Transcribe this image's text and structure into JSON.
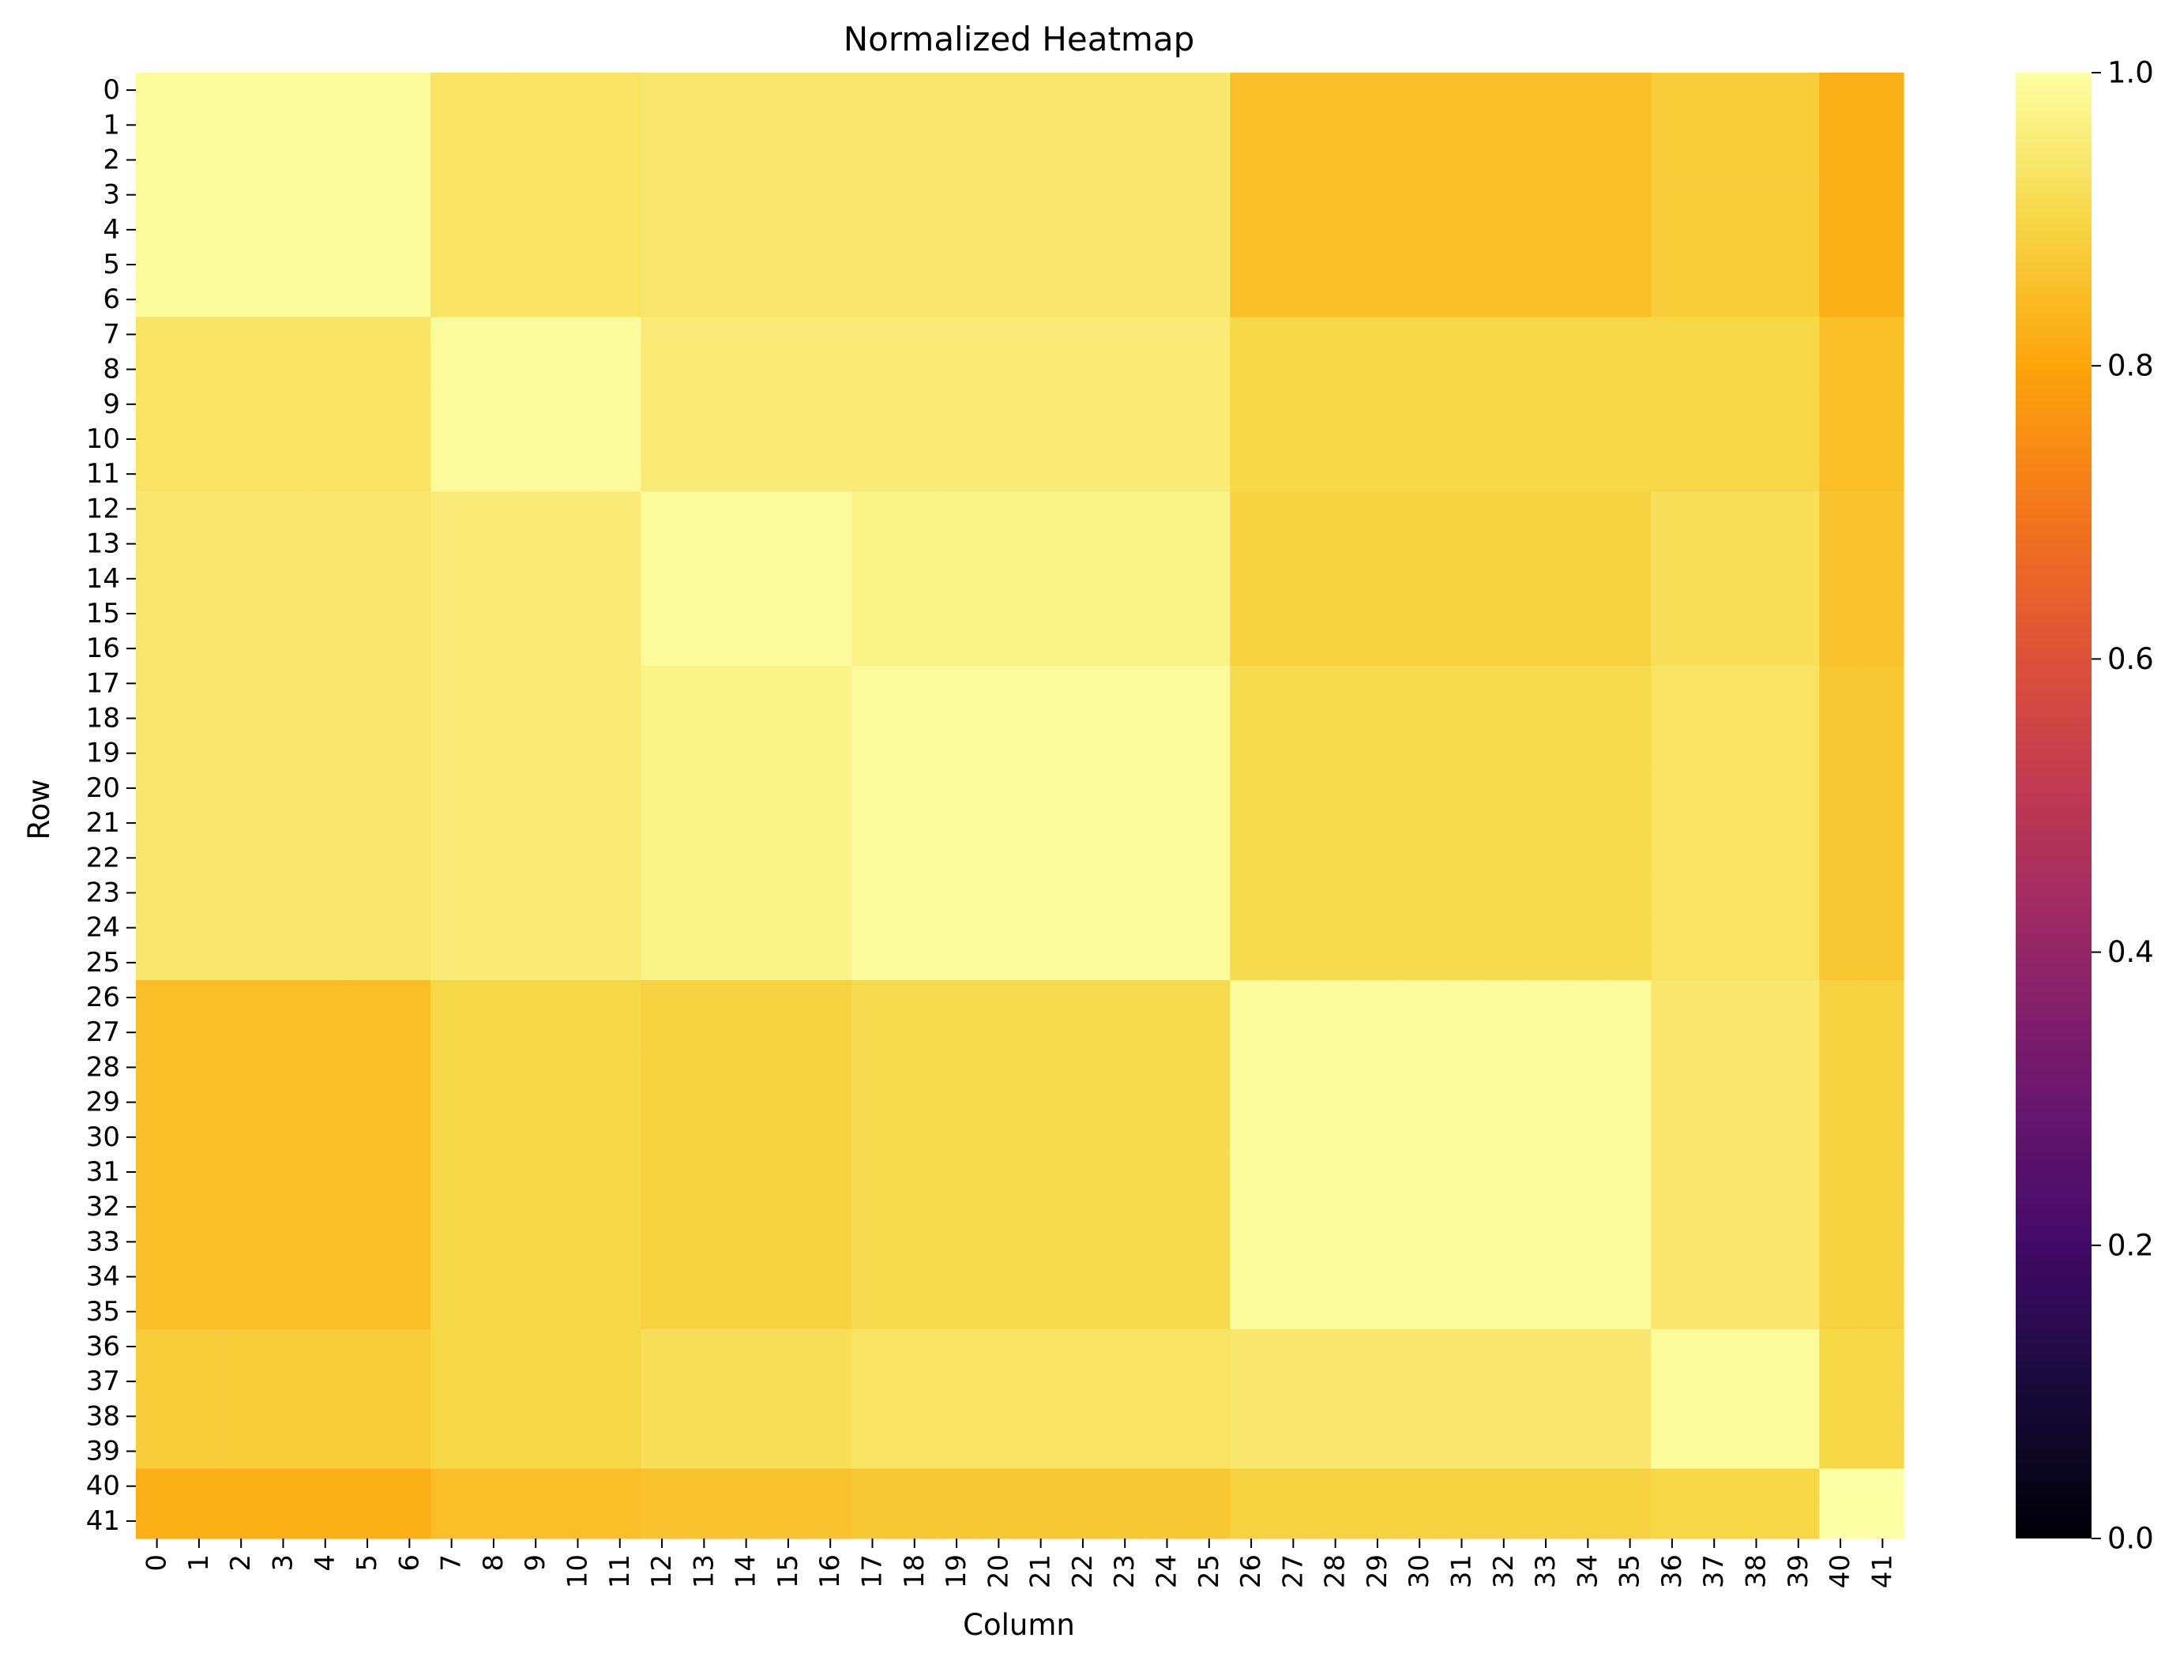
{
  "chart_data": {
    "type": "heatmap",
    "title": "Normalized Heatmap",
    "xlabel": "Column",
    "ylabel": "Row",
    "colormap": "inferno",
    "vmin": 0.0,
    "vmax": 1.0,
    "colorbar_ticks": [
      {
        "value": 0.0,
        "label": "0.0"
      },
      {
        "value": 0.2,
        "label": "0.2"
      },
      {
        "value": 0.4,
        "label": "0.4"
      },
      {
        "value": 0.6,
        "label": "0.6"
      },
      {
        "value": 0.8,
        "label": "0.8"
      },
      {
        "value": 1.0,
        "label": "1.0"
      }
    ],
    "x_labels": [
      "0",
      "1",
      "2",
      "3",
      "4",
      "5",
      "6",
      "7",
      "8",
      "9",
      "10",
      "11",
      "12",
      "13",
      "14",
      "15",
      "16",
      "17",
      "18",
      "19",
      "20",
      "21",
      "22",
      "23",
      "24",
      "25",
      "26",
      "27",
      "28",
      "29",
      "30",
      "31",
      "32",
      "33",
      "34",
      "35",
      "36",
      "37",
      "38",
      "39",
      "40",
      "41"
    ],
    "y_labels": [
      "0",
      "1",
      "2",
      "3",
      "4",
      "5",
      "6",
      "7",
      "8",
      "9",
      "10",
      "11",
      "12",
      "13",
      "14",
      "15",
      "16",
      "17",
      "18",
      "19",
      "20",
      "21",
      "22",
      "23",
      "24",
      "25",
      "26",
      "27",
      "28",
      "29",
      "30",
      "31",
      "32",
      "33",
      "34",
      "35",
      "36",
      "37",
      "38",
      "39",
      "40",
      "41"
    ],
    "block_ranges": [
      [
        0,
        6
      ],
      [
        7,
        11
      ],
      [
        12,
        16
      ],
      [
        17,
        25
      ],
      [
        26,
        35
      ],
      [
        36,
        39
      ],
      [
        40,
        41
      ]
    ],
    "block_matrix": [
      [
        0.99,
        0.93,
        0.94,
        0.94,
        0.85,
        0.88,
        0.82
      ],
      [
        0.93,
        0.99,
        0.95,
        0.95,
        0.9,
        0.9,
        0.85
      ],
      [
        0.94,
        0.95,
        0.99,
        0.97,
        0.89,
        0.92,
        0.86
      ],
      [
        0.94,
        0.95,
        0.97,
        0.99,
        0.91,
        0.93,
        0.87
      ],
      [
        0.85,
        0.9,
        0.89,
        0.91,
        0.99,
        0.94,
        0.89
      ],
      [
        0.88,
        0.9,
        0.92,
        0.93,
        0.94,
        0.99,
        0.9
      ],
      [
        0.82,
        0.85,
        0.86,
        0.87,
        0.89,
        0.9,
        1.0
      ]
    ]
  }
}
